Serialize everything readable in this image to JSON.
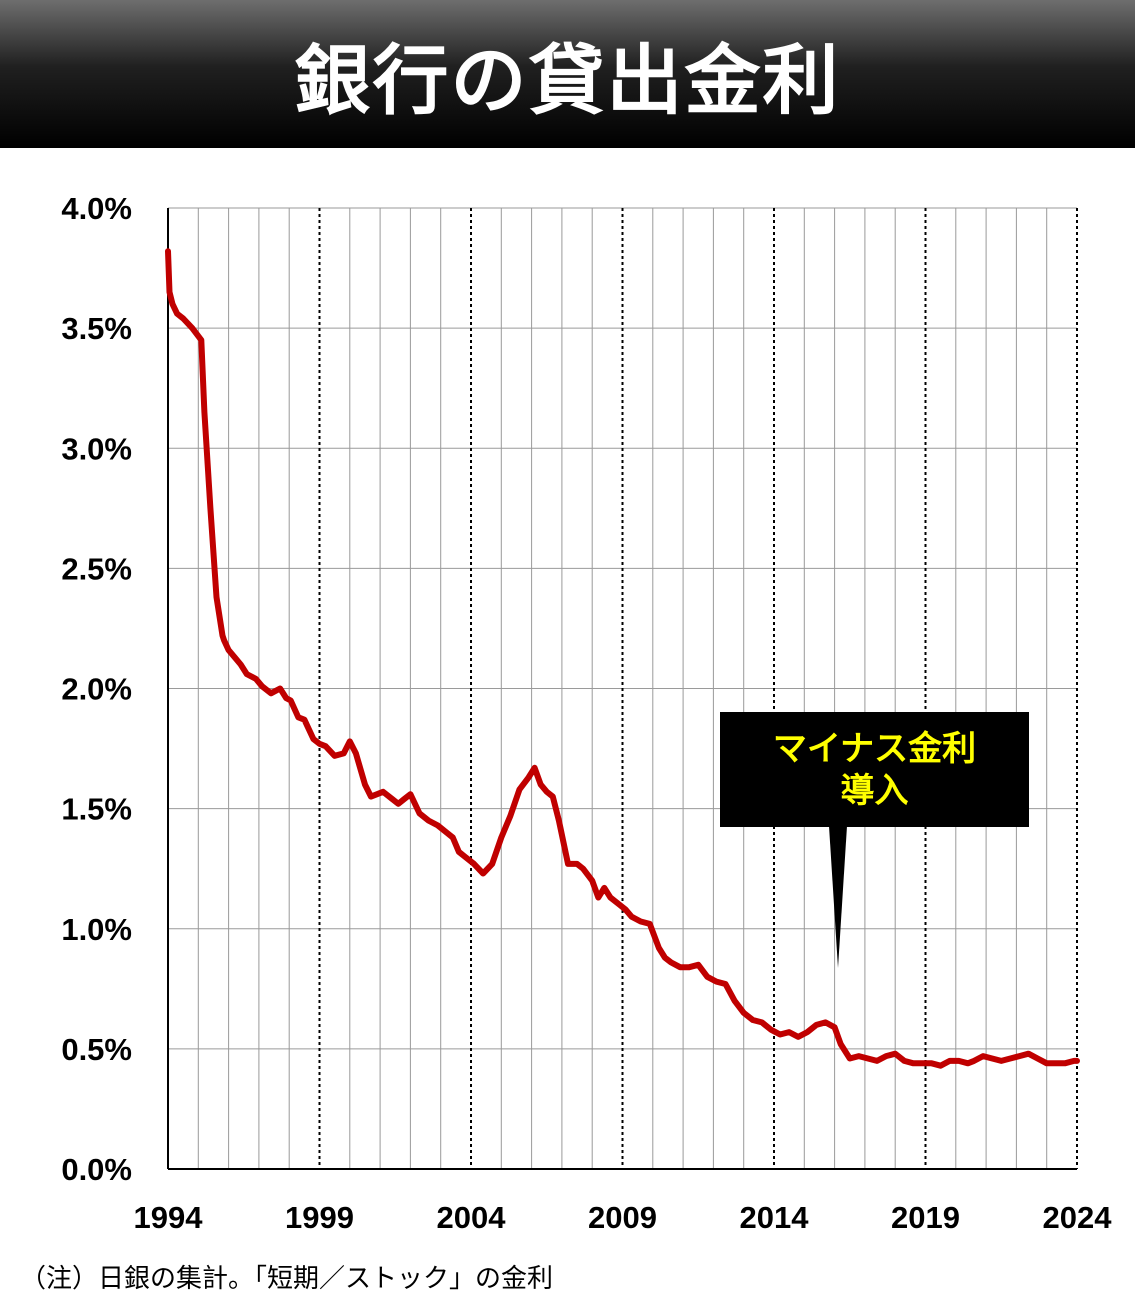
{
  "header": {
    "title": "銀行の貸出金利"
  },
  "chart_data": {
    "type": "line",
    "title": "銀行の貸出金利",
    "xlabel": "",
    "ylabel": "",
    "x_tick_labels": [
      "1994",
      "1999",
      "2004",
      "2009",
      "2014",
      "2019",
      "2024"
    ],
    "y_tick_labels": [
      "0.0%",
      "0.5%",
      "1.0%",
      "1.5%",
      "2.0%",
      "2.5%",
      "3.0%",
      "3.5%",
      "4.0%"
    ],
    "xlim": [
      1994.0,
      2024.0
    ],
    "ylim": [
      0.0,
      4.0
    ],
    "grid": "vertical yearly (dotted every 5 years), horizontal every 0.5%",
    "line_color": "#c00000",
    "series": [
      {
        "name": "",
        "x": [
          1994.0,
          1994.05,
          1994.15,
          1994.3,
          1994.5,
          1994.8,
          1995.1,
          1995.2,
          1995.4,
          1995.6,
          1995.8,
          1995.85,
          1996.0,
          1996.2,
          1996.4,
          1996.6,
          1996.9,
          1997.1,
          1997.4,
          1997.7,
          1997.9,
          1998.05,
          1998.3,
          1998.5,
          1998.8,
          1999.0,
          1999.2,
          1999.5,
          1999.8,
          2000.0,
          2000.2,
          2000.5,
          2000.7,
          2000.9,
          2001.1,
          2001.4,
          2001.6,
          2001.8,
          2002.0,
          2002.3,
          2002.6,
          2002.9,
          2003.2,
          2003.4,
          2003.6,
          2003.8,
          2004.1,
          2004.4,
          2004.7,
          2005.0,
          2005.3,
          2005.6,
          2005.9,
          2006.1,
          2006.3,
          2006.5,
          2006.7,
          2006.9,
          2007.2,
          2007.5,
          2007.7,
          2008.0,
          2008.2,
          2008.4,
          2008.6,
          2008.9,
          2009.1,
          2009.3,
          2009.6,
          2009.9,
          2010.2,
          2010.4,
          2010.6,
          2010.9,
          2011.2,
          2011.5,
          2011.8,
          2012.1,
          2012.4,
          2012.7,
          2013.0,
          2013.3,
          2013.6,
          2013.9,
          2014.2,
          2014.5,
          2014.8,
          2015.1,
          2015.4,
          2015.7,
          2016.0,
          2016.2,
          2016.5,
          2016.8,
          2017.1,
          2017.4,
          2017.7,
          2018.0,
          2018.3,
          2018.6,
          2018.9,
          2019.2,
          2019.5,
          2019.8,
          2020.1,
          2020.4,
          2020.6,
          2020.9,
          2021.2,
          2021.5,
          2021.8,
          2022.1,
          2022.4,
          2022.7,
          2023.0,
          2023.3,
          2023.6,
          2023.9,
          2024.0
        ],
        "y": [
          3.82,
          3.65,
          3.6,
          3.56,
          3.54,
          3.5,
          3.45,
          3.15,
          2.75,
          2.38,
          2.22,
          2.2,
          2.16,
          2.13,
          2.1,
          2.06,
          2.04,
          2.01,
          1.98,
          2.0,
          1.96,
          1.95,
          1.88,
          1.87,
          1.79,
          1.77,
          1.76,
          1.72,
          1.73,
          1.78,
          1.73,
          1.6,
          1.55,
          1.56,
          1.57,
          1.54,
          1.52,
          1.54,
          1.56,
          1.48,
          1.45,
          1.43,
          1.4,
          1.38,
          1.32,
          1.3,
          1.27,
          1.23,
          1.27,
          1.38,
          1.47,
          1.58,
          1.63,
          1.67,
          1.6,
          1.57,
          1.55,
          1.45,
          1.27,
          1.27,
          1.25,
          1.2,
          1.13,
          1.17,
          1.13,
          1.1,
          1.08,
          1.05,
          1.03,
          1.02,
          0.92,
          0.88,
          0.86,
          0.84,
          0.84,
          0.85,
          0.8,
          0.78,
          0.77,
          0.7,
          0.65,
          0.62,
          0.61,
          0.58,
          0.56,
          0.57,
          0.55,
          0.57,
          0.6,
          0.61,
          0.59,
          0.52,
          0.46,
          0.47,
          0.46,
          0.45,
          0.47,
          0.48,
          0.45,
          0.44,
          0.44,
          0.44,
          0.43,
          0.45,
          0.45,
          0.44,
          0.45,
          0.47,
          0.46,
          0.45,
          0.46,
          0.47,
          0.48,
          0.46,
          0.44,
          0.44,
          0.44,
          0.45,
          0.45
        ]
      }
    ],
    "annotations": [
      {
        "label": "マイナス金利",
        "label2": "導入",
        "x": 2016.1,
        "y": 0.85
      }
    ]
  },
  "callout": {
    "line1": "マイナス金利",
    "line2": "導入",
    "bg_color": "#000000",
    "text_color": "#ffff00"
  },
  "footnote": "（注）日銀の集計。「短期／ストック」の金利"
}
